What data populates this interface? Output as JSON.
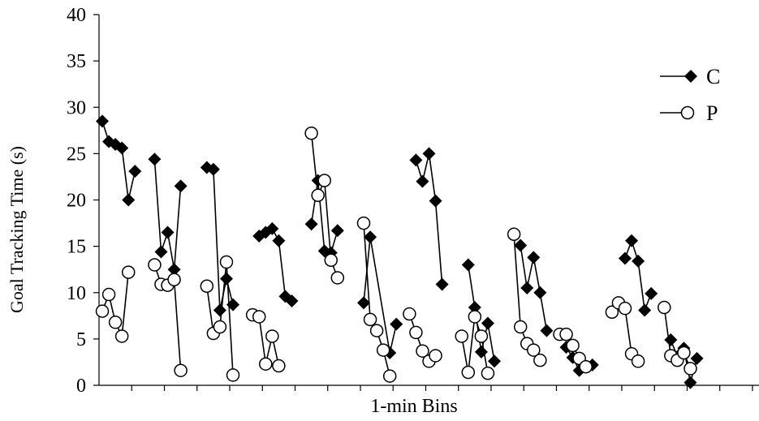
{
  "chart_data": {
    "type": "line",
    "xlabel": "1-min Bins",
    "ylabel": "Goal Tracking Time (s)",
    "ylim": [
      0,
      40
    ],
    "yticks": [
      "0",
      "5",
      "10",
      "15",
      "20",
      "25",
      "30",
      "35",
      "40"
    ],
    "xlim": [
      0.5,
      101.5
    ],
    "x_tick_interval": 5,
    "legend_position": "top-right",
    "series": [
      {
        "name": "C",
        "marker": "filled-diamond",
        "color": "#000000",
        "segments": [
          [
            [
              1,
              28.5
            ],
            [
              2,
              26.3
            ],
            [
              3,
              26.0
            ],
            [
              4,
              25.6
            ],
            [
              5,
              20.0
            ],
            [
              6,
              23.1
            ]
          ],
          [
            [
              9,
              24.4
            ],
            [
              10,
              14.4
            ],
            [
              11,
              16.5
            ],
            [
              12,
              12.5
            ],
            [
              13,
              21.5
            ]
          ],
          [
            [
              17,
              23.5
            ],
            [
              18,
              23.3
            ],
            [
              19,
              8.1
            ],
            [
              20,
              11.5
            ],
            [
              21,
              8.7
            ]
          ],
          [
            [
              25,
              16.1
            ],
            [
              26,
              16.5
            ],
            [
              27,
              16.9
            ],
            [
              28,
              15.6
            ],
            [
              29,
              9.6
            ],
            [
              30,
              9.1
            ]
          ],
          [
            [
              33,
              17.4
            ],
            [
              34,
              22.1
            ],
            [
              35,
              14.5
            ],
            [
              36,
              14.3
            ],
            [
              37,
              16.7
            ]
          ],
          [
            [
              41,
              8.9
            ],
            [
              42,
              16.0
            ],
            [
              43,
              null
            ],
            [
              44,
              null
            ],
            [
              45,
              3.5
            ],
            [
              46,
              6.6
            ]
          ],
          [
            [
              49,
              24.3
            ],
            [
              50,
              22.0
            ],
            [
              51,
              25.0
            ],
            [
              52,
              19.9
            ],
            [
              53,
              10.9
            ]
          ],
          [
            [
              57,
              13.0
            ],
            [
              58,
              8.4
            ],
            [
              59,
              3.6
            ],
            [
              60,
              6.7
            ],
            [
              61,
              2.6
            ]
          ],
          [
            [
              65,
              15.1
            ],
            [
              66,
              10.5
            ],
            [
              67,
              13.8
            ],
            [
              68,
              10.0
            ],
            [
              69,
              5.9
            ]
          ],
          [
            [
              72,
              4.1
            ],
            [
              73,
              3.0
            ],
            [
              74,
              1.6
            ],
            [
              75,
              2.0
            ],
            [
              76,
              2.2
            ]
          ],
          [
            [
              81,
              13.7
            ],
            [
              82,
              15.6
            ],
            [
              83,
              13.4
            ],
            [
              84,
              8.1
            ],
            [
              85,
              9.9
            ]
          ],
          [
            [
              88,
              4.9
            ],
            [
              89,
              3.1
            ],
            [
              90,
              4.0
            ],
            [
              91,
              0.3
            ],
            [
              92,
              2.9
            ]
          ]
        ]
      },
      {
        "name": "P",
        "marker": "open-circle",
        "color": "#000000",
        "segments": [
          [
            [
              1,
              8.0
            ],
            [
              2,
              9.8
            ],
            [
              3,
              6.8
            ],
            [
              4,
              5.3
            ],
            [
              5,
              12.2
            ]
          ],
          [
            [
              9,
              13.0
            ],
            [
              10,
              10.9
            ],
            [
              11,
              10.8
            ],
            [
              12,
              11.4
            ],
            [
              13,
              1.6
            ]
          ],
          [
            [
              17,
              10.7
            ],
            [
              18,
              5.6
            ],
            [
              19,
              6.3
            ],
            [
              20,
              13.3
            ],
            [
              21,
              1.1
            ]
          ],
          [
            [
              24,
              7.6
            ],
            [
              25,
              7.4
            ],
            [
              26,
              2.3
            ],
            [
              27,
              5.3
            ],
            [
              28,
              2.1
            ]
          ],
          [
            [
              33,
              27.2
            ],
            [
              34,
              20.5
            ],
            [
              35,
              22.1
            ],
            [
              36,
              13.5
            ],
            [
              37,
              11.6
            ]
          ],
          [
            [
              41,
              17.5
            ],
            [
              42,
              7.1
            ],
            [
              43,
              5.9
            ],
            [
              44,
              3.8
            ],
            [
              45,
              1.0
            ]
          ],
          [
            [
              48,
              7.7
            ],
            [
              49,
              5.7
            ],
            [
              50,
              3.7
            ],
            [
              51,
              2.6
            ],
            [
              52,
              3.2
            ]
          ],
          [
            [
              56,
              5.3
            ],
            [
              57,
              1.4
            ],
            [
              58,
              7.4
            ],
            [
              59,
              5.3
            ],
            [
              60,
              1.3
            ]
          ],
          [
            [
              64,
              16.3
            ],
            [
              65,
              6.3
            ],
            [
              66,
              4.5
            ],
            [
              67,
              3.8
            ],
            [
              68,
              2.7
            ]
          ],
          [
            [
              71,
              5.5
            ],
            [
              72,
              5.5
            ],
            [
              73,
              4.3
            ],
            [
              74,
              2.9
            ],
            [
              75,
              2.0
            ]
          ],
          [
            [
              79,
              7.9
            ],
            [
              80,
              8.9
            ],
            [
              81,
              8.3
            ],
            [
              82,
              3.4
            ],
            [
              83,
              2.6
            ]
          ],
          [
            [
              87,
              8.4
            ],
            [
              88,
              3.2
            ],
            [
              89,
              2.7
            ],
            [
              90,
              3.5
            ],
            [
              91,
              1.8
            ]
          ]
        ]
      }
    ]
  }
}
